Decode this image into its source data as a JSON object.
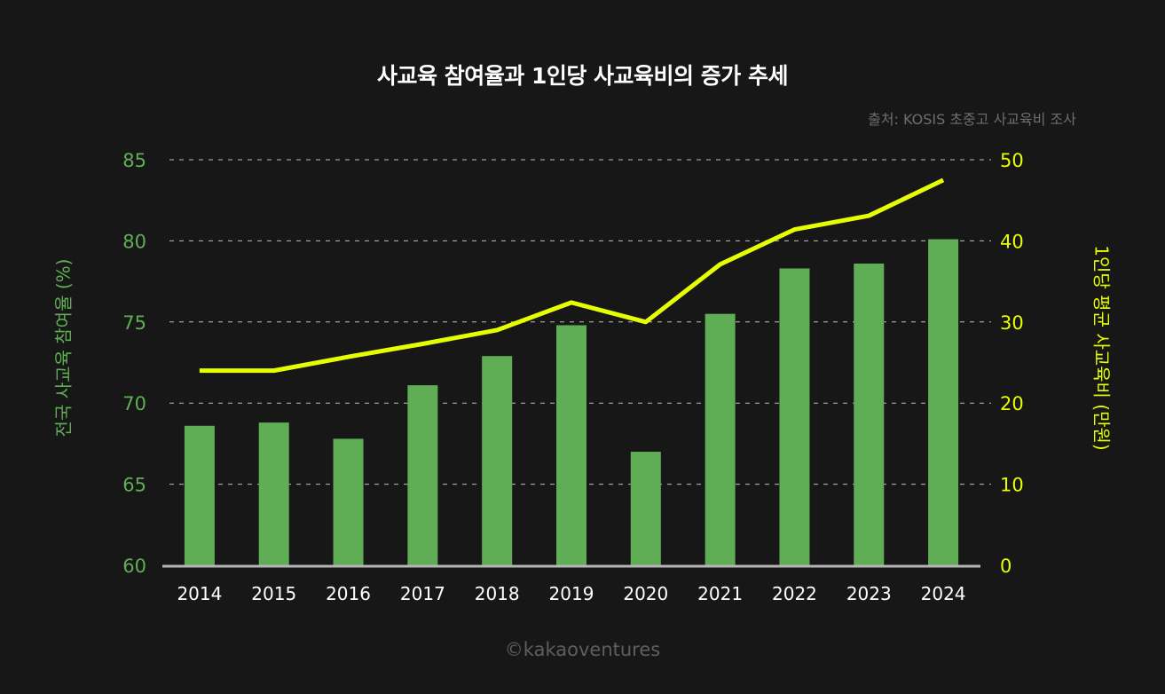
{
  "chart_data": {
    "type": "bar+line",
    "title": "사교육 참여율과 1인당 사교육비의 증가 추세",
    "source": "출처: KOSIS 초중고 사교육비 조사",
    "footer": "©kakaoventures",
    "categories": [
      "2014",
      "2015",
      "2016",
      "2017",
      "2018",
      "2019",
      "2020",
      "2021",
      "2022",
      "2023",
      "2024"
    ],
    "series": [
      {
        "name": "전국 사교육 참여율 (%)",
        "type": "bar",
        "axis": "left",
        "color": "#5fae55",
        "values": [
          68.6,
          68.8,
          67.8,
          71.1,
          72.9,
          74.8,
          67.0,
          75.5,
          78.3,
          78.6,
          80.1
        ]
      },
      {
        "name": "1인당 평균 사교육비 (만원)",
        "type": "line",
        "axis": "right",
        "color": "#e6ff00",
        "values": [
          24.0,
          24.0,
          25.7,
          27.3,
          29.0,
          32.4,
          30.0,
          37.1,
          41.4,
          43.1,
          47.5
        ]
      }
    ],
    "y_left": {
      "label": "전국 사교육 참여율 (%)",
      "ylim": [
        60,
        85
      ],
      "ticks": [
        "60",
        "65",
        "70",
        "75",
        "80",
        "85"
      ],
      "color": "#5fae55"
    },
    "y_right": {
      "label": "1인당 평균 사교육비 (만원)",
      "ylim": [
        0,
        50
      ],
      "ticks": [
        "0",
        "10",
        "20",
        "30",
        "40",
        "50"
      ],
      "color": "#e6ff00"
    },
    "grid": true,
    "legend": "none"
  }
}
